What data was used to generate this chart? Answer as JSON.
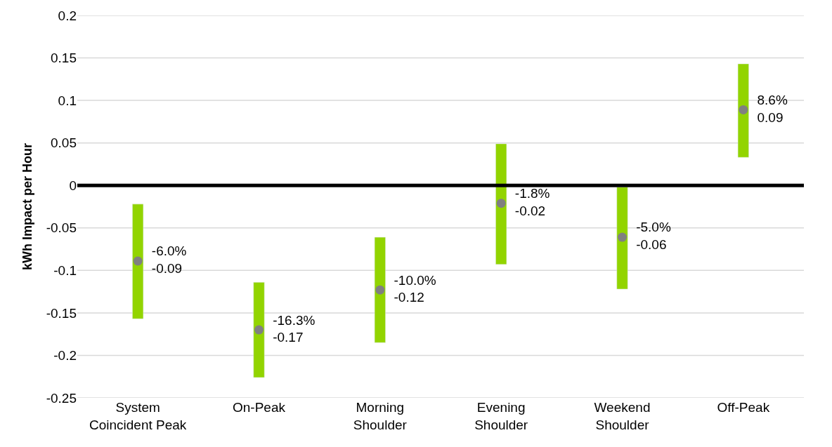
{
  "chart_data": {
    "type": "bar",
    "ylabel": "kWh Impact per Hour",
    "categories": [
      "System\nCoincident Peak",
      "On-Peak",
      "Morning\nShoulder",
      "Evening\nShoulder",
      "Weekend\nShoulder",
      "Off-Peak"
    ],
    "series": [
      {
        "color": "#92d400",
        "base": [
          -0.157,
          -0.226,
          -0.185,
          -0.093,
          -0.122,
          0.033
        ],
        "values": [
          0.135,
          0.112,
          0.124,
          0.142,
          0.12,
          0.11
        ]
      },
      {
        "type": "scatter",
        "color": "#808080",
        "marker": "circle",
        "values": [
          -0.089,
          -0.17,
          -0.123,
          -0.021,
          -0.061,
          0.089
        ],
        "value_labels": [
          "-6.0%\n-0.09",
          "-16.3%\n-0.17",
          "-10.0%\n-0.12",
          "-1.8%\n-0.02",
          "-5.0%\n-0.06",
          "8.6%\n0.09"
        ]
      }
    ],
    "ylim": [
      -0.25,
      0.2
    ],
    "yticks": [
      {
        "value": 0.2,
        "label": "0.2"
      },
      {
        "value": 0.15,
        "label": "0.15"
      },
      {
        "value": 0.1,
        "label": "0.1"
      },
      {
        "value": 0.05,
        "label": "0.05"
      },
      {
        "value": 0,
        "label": "0"
      },
      {
        "value": -0.05,
        "label": "-0.05"
      },
      {
        "value": -0.1,
        "label": "-0.1"
      },
      {
        "value": -0.15,
        "label": "-0.15"
      },
      {
        "value": -0.2,
        "label": "-0.2"
      },
      {
        "value": -0.25,
        "label": "-0.25"
      }
    ],
    "ref_lines": [
      {
        "axis": "y",
        "value": 0,
        "color": "#000000"
      }
    ],
    "grid": "y"
  }
}
